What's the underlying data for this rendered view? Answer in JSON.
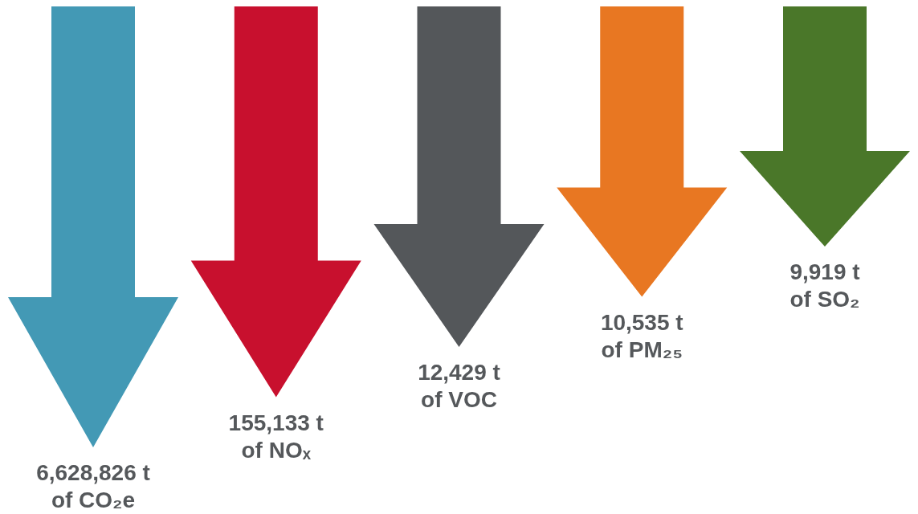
{
  "chart_data": {
    "type": "other",
    "categories": [
      "of CO₂e",
      "of NOₓ",
      "of VOC",
      "of PM₂₅",
      "of SO₂"
    ],
    "values": [
      6628826,
      155133,
      12429,
      10535,
      9919
    ],
    "value_labels": [
      "6,628,826 t",
      "155,133 t",
      "12,429 t",
      "10,535 t",
      "9,919 t"
    ],
    "colors": [
      "#4399b5",
      "#c8102e",
      "#54575a",
      "#e87722",
      "#4a7729"
    ]
  }
}
